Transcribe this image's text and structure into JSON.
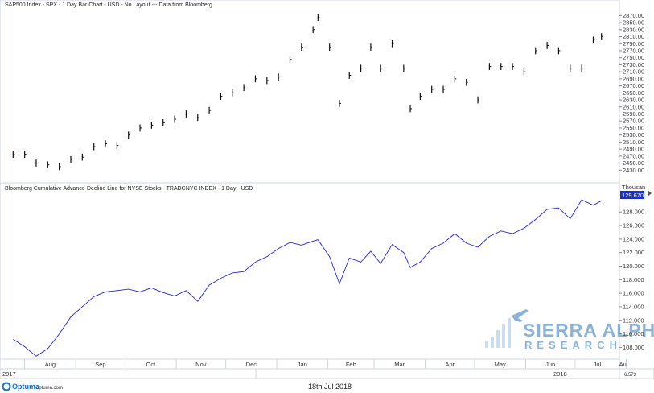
{
  "top_panel": {
    "title": "S&P500 Index - SPX - 1 Day Bar Chart - USD - No Layout --- Data from Bloomberg",
    "y_ticks": [
      "2870.00",
      "2850.00",
      "2830.00",
      "2810.00",
      "2790.00",
      "2770.00",
      "2750.00",
      "2730.00",
      "2710.00",
      "2690.00",
      "2670.00",
      "2650.00",
      "2630.00",
      "2610.00",
      "2590.00",
      "2570.00",
      "2550.00",
      "2530.00",
      "2510.00",
      "2490.00",
      "2470.00",
      "2450.00",
      "2430.00"
    ]
  },
  "bottom_panel": {
    "title": "Bloomberg Cumulative Advance-Decline Line for NYSE Stocks - TRADCNYC INDEX - 1 Day - USD",
    "unit": "Thousan",
    "last_value": "129.670",
    "y_ticks": [
      "128.000",
      "126.000",
      "124.000",
      "122.000",
      "120.000",
      "118.000",
      "116.000",
      "114.000",
      "112.000",
      "110.000",
      "108.000"
    ]
  },
  "x_axis": {
    "months": [
      "Aug",
      "Sep",
      "Oct",
      "Nov",
      "Dec",
      "Jan",
      "Feb",
      "Mar",
      "Apr",
      "May",
      "Jun",
      "Jul",
      "Au"
    ],
    "year_left": "2017",
    "year_right": "2018"
  },
  "footer": {
    "brand": "Optuma",
    "brand_url": "optuma.com",
    "date": "18th Jul 2018",
    "corner_value": "6.573"
  },
  "watermark": {
    "line1": "SIERRA ALPHA",
    "line2": "RESEARCH"
  },
  "colors": {
    "ad_line": "#2323d9",
    "bars": "#111111",
    "label_box": "#1a2fd0",
    "watermark": "#8bb3d8"
  },
  "chart_data": [
    {
      "type": "bar",
      "title": "S&P500 Index - SPX - 1 Day Bar Chart - USD - No Layout --- Data from Bloomberg",
      "ylim": [
        2410,
        2880
      ],
      "x": [
        "2017-07-25",
        "2017-08-01",
        "2017-08-08",
        "2017-08-15",
        "2017-08-22",
        "2017-08-29",
        "2017-09-05",
        "2017-09-12",
        "2017-09-19",
        "2017-09-26",
        "2017-10-03",
        "2017-10-10",
        "2017-10-17",
        "2017-10-24",
        "2017-10-31",
        "2017-11-07",
        "2017-11-14",
        "2017-11-21",
        "2017-11-28",
        "2017-12-05",
        "2017-12-12",
        "2017-12-19",
        "2017-12-26",
        "2018-01-02",
        "2018-01-09",
        "2018-01-16",
        "2018-01-23",
        "2018-01-26",
        "2018-02-02",
        "2018-02-08",
        "2018-02-14",
        "2018-02-21",
        "2018-02-27",
        "2018-03-05",
        "2018-03-12",
        "2018-03-19",
        "2018-03-23",
        "2018-03-29",
        "2018-04-05",
        "2018-04-12",
        "2018-04-19",
        "2018-04-26",
        "2018-05-03",
        "2018-05-10",
        "2018-05-17",
        "2018-05-24",
        "2018-05-31",
        "2018-06-07",
        "2018-06-14",
        "2018-06-21",
        "2018-06-28",
        "2018-07-05",
        "2018-07-12",
        "2018-07-17"
      ],
      "values": [
        2475,
        2475,
        2450,
        2445,
        2440,
        2460,
        2467,
        2497,
        2505,
        2500,
        2530,
        2550,
        2558,
        2565,
        2575,
        2590,
        2580,
        2600,
        2640,
        2650,
        2665,
        2690,
        2685,
        2695,
        2745,
        2780,
        2830,
        2865,
        2780,
        2620,
        2700,
        2720,
        2780,
        2720,
        2790,
        2720,
        2605,
        2640,
        2660,
        2660,
        2690,
        2680,
        2630,
        2725,
        2725,
        2725,
        2710,
        2770,
        2785,
        2770,
        2720,
        2720,
        2800,
        2810
      ]
    },
    {
      "type": "line",
      "title": "Bloomberg Cumulative Advance-Decline Line for NYSE Stocks - TRADCNYC INDEX - 1 Day - USD",
      "ylabel": "Thousan",
      "ylim": [
        106.5,
        131
      ],
      "x": [
        "2017-07-25",
        "2017-08-01",
        "2017-08-08",
        "2017-08-15",
        "2017-08-22",
        "2017-08-29",
        "2017-09-05",
        "2017-09-12",
        "2017-09-19",
        "2017-09-26",
        "2017-10-03",
        "2017-10-10",
        "2017-10-17",
        "2017-10-24",
        "2017-10-31",
        "2017-11-07",
        "2017-11-14",
        "2017-11-21",
        "2017-11-28",
        "2017-12-05",
        "2017-12-12",
        "2017-12-19",
        "2017-12-26",
        "2018-01-02",
        "2018-01-09",
        "2018-01-16",
        "2018-01-23",
        "2018-01-26",
        "2018-02-02",
        "2018-02-08",
        "2018-02-14",
        "2018-02-21",
        "2018-02-27",
        "2018-03-05",
        "2018-03-12",
        "2018-03-19",
        "2018-03-23",
        "2018-03-29",
        "2018-04-05",
        "2018-04-12",
        "2018-04-19",
        "2018-04-26",
        "2018-05-03",
        "2018-05-10",
        "2018-05-17",
        "2018-05-24",
        "2018-05-31",
        "2018-06-07",
        "2018-06-14",
        "2018-06-21",
        "2018-06-28",
        "2018-07-05",
        "2018-07-12",
        "2018-07-17"
      ],
      "series": [
        {
          "values": [
            109.2,
            108.1,
            106.7,
            107.8,
            110.0,
            112.5,
            114.0,
            115.5,
            116.2,
            116.4,
            116.6,
            116.2,
            116.8,
            116.1,
            115.6,
            116.4,
            114.8,
            117.2,
            118.2,
            119.0,
            119.2,
            120.6,
            121.4,
            122.6,
            123.5,
            123.1,
            123.7,
            123.9,
            121.4,
            117.4,
            121.2,
            120.6,
            122.2,
            120.4,
            123.2,
            122.0,
            119.8,
            120.6,
            122.6,
            123.4,
            124.8,
            123.4,
            122.8,
            124.4,
            125.2,
            124.8,
            125.6,
            126.9,
            128.4,
            128.6,
            127.0,
            129.8,
            129.0,
            129.67
          ]
        }
      ]
    }
  ]
}
